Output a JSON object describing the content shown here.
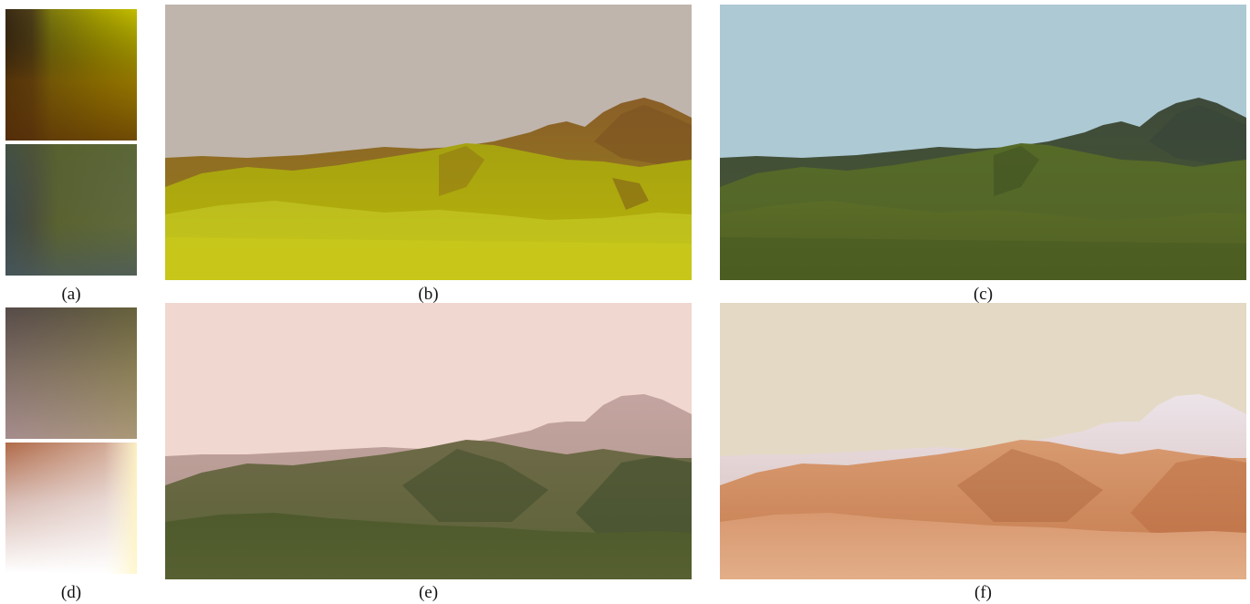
{
  "captions": {
    "a": "(a)",
    "b": "(b)",
    "c": "(c)",
    "d": "(d)",
    "e": "(e)",
    "f": "(f)"
  },
  "colors": {
    "b_sky": "#bfb5ac",
    "c_sky": "#acc9d4",
    "e_sky": "#f0d7d0",
    "f_sky": "#e4d9c4"
  }
}
